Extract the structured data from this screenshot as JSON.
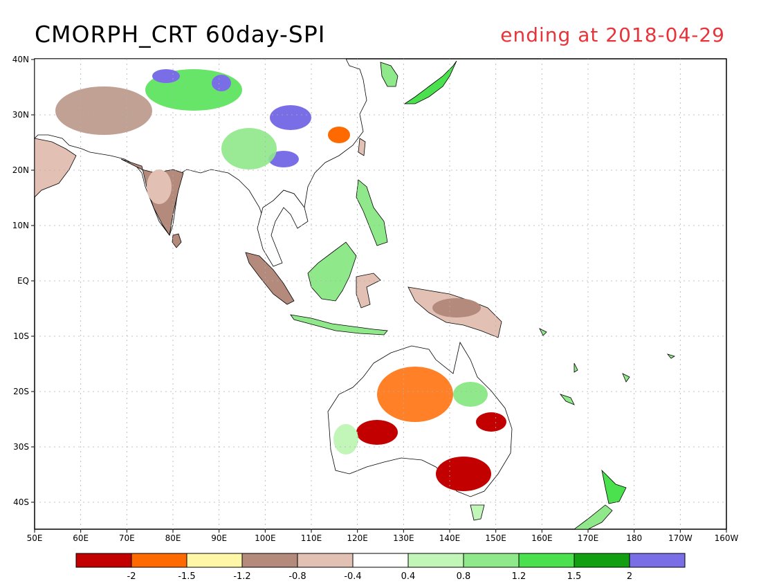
{
  "title": "CMORPH_CRT 60day-SPI",
  "subtitle": "ending at 2018-04-29",
  "title_color": "#000000",
  "subtitle_color": "#e8333a",
  "map": {
    "lon_labels": [
      "50E",
      "60E",
      "70E",
      "80E",
      "90E",
      "100E",
      "110E",
      "120E",
      "130E",
      "140E",
      "150E",
      "160E",
      "170E",
      "180",
      "170W",
      "160W"
    ],
    "lat_labels": [
      "40N",
      "30N",
      "20N",
      "10N",
      "EQ",
      "10S",
      "20S",
      "30S",
      "40S"
    ]
  },
  "legend": {
    "colors": [
      "#c20000",
      "#ff6a00",
      "#fff7a8",
      "#b38a7b",
      "#e3c0b4",
      "#ffffff",
      "#c2f5b8",
      "#8fe889",
      "#4be04d",
      "#12a012",
      "#7a6ee6"
    ],
    "labels": [
      "-2",
      "-1.5",
      "-1.2",
      "-0.8",
      "-0.4",
      "0.4",
      "0.8",
      "1.2",
      "1.5",
      "2"
    ]
  },
  "colors": {
    "land_outline": "#000000",
    "grid": "#b0b0b0"
  }
}
